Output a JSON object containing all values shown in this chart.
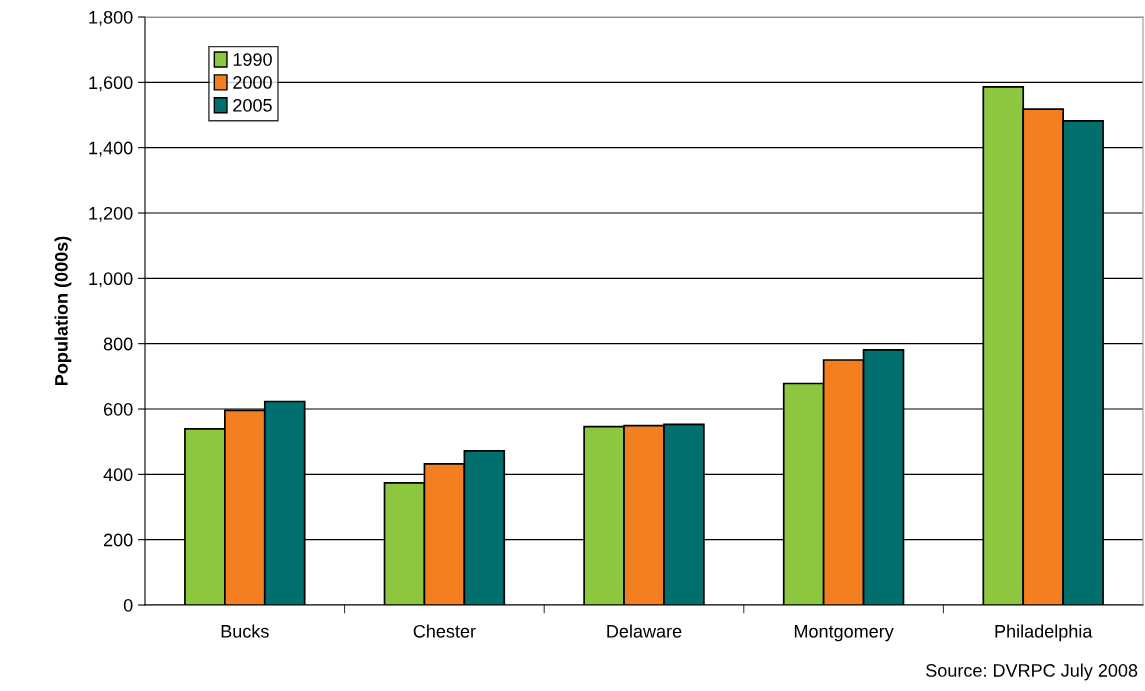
{
  "chart_data": {
    "type": "bar",
    "ylabel": "Population (000s)",
    "categories": [
      "Bucks",
      "Chester",
      "Delaware",
      "Montgomery",
      "Philadelphia"
    ],
    "series": [
      {
        "name": "1990",
        "color": "#8dc63f",
        "values": [
          539,
          374,
          546,
          678,
          1586
        ]
      },
      {
        "name": "2000",
        "color": "#f47f20",
        "values": [
          596,
          432,
          549,
          750,
          1518
        ]
      },
      {
        "name": "2005",
        "color": "#006f6e",
        "values": [
          623,
          472,
          553,
          781,
          1482
        ]
      }
    ],
    "ylim": [
      0,
      1800
    ],
    "yticks": [
      0,
      {
        "value": 200,
        "label": "200"
      },
      {
        "value": 400,
        "label": "400"
      },
      {
        "value": 600,
        "label": "600"
      },
      {
        "value": 800,
        "label": "800"
      },
      {
        "value": 1000,
        "label": "1,000"
      },
      {
        "value": 1200,
        "label": "1,200"
      },
      {
        "value": 1400,
        "label": "1,400"
      },
      {
        "value": 1600,
        "label": "1,600"
      },
      {
        "value": 1800,
        "label": "1,800"
      }
    ],
    "grid": "y",
    "legend": "top left",
    "annotations": [
      "Source: DVRPC July 2008"
    ]
  }
}
